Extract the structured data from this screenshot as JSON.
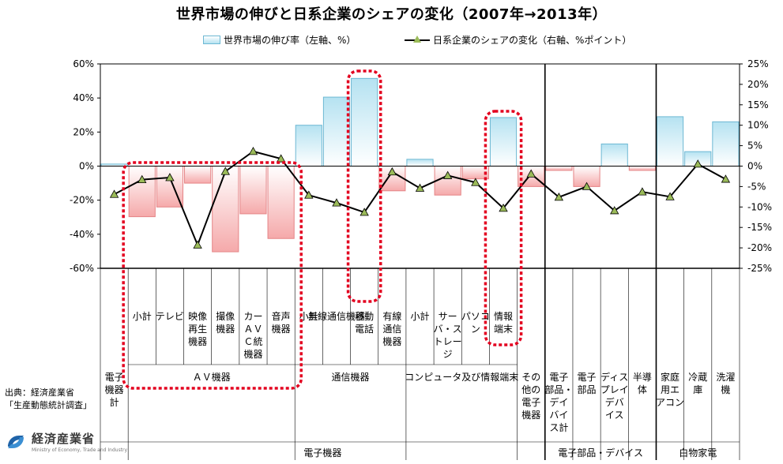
{
  "title": "世界市場の伸びと日系企業のシェアの変化（2007年→2013年）",
  "legend": {
    "bar_label": "世界市場の伸び率（左軸、%）",
    "line_label": "日系企業のシェアの変化（右軸、%ポイント）"
  },
  "source": {
    "line1": "出典：経済産業省",
    "line2": "「生産動態統計調査」"
  },
  "logo": {
    "name": "経済産業省",
    "sub": "Ministry of Economy, Trade and Industry"
  },
  "colors": {
    "positive_bar": "#b5e2f1",
    "negative_bar": "#f5a9aa",
    "line": "#000000",
    "marker": "#9bbb59",
    "highlight": "#e3001f"
  },
  "chart_data": {
    "type": "bar+line",
    "left_axis": {
      "unit": "%",
      "ylim": [
        -60,
        60
      ],
      "ticks": [
        "60%",
        "40%",
        "20%",
        "0%",
        "-20%",
        "-40%",
        "-60%"
      ]
    },
    "right_axis": {
      "unit": "%ポイント",
      "ylim": [
        -25,
        25
      ],
      "ticks": [
        "25%",
        "20%",
        "15%",
        "10%",
        "5%",
        "0%",
        "-5%",
        "-10%",
        "-15%",
        "-20%",
        "-25%"
      ]
    },
    "categories": [
      {
        "label": "電子機器計",
        "lines": [
          "電子",
          "機器",
          "計"
        ],
        "bar": 1.2,
        "share": -6.9
      },
      {
        "label": "AV機器 小計",
        "lines": [
          "小計"
        ],
        "bar": -29.7,
        "share": -3.3
      },
      {
        "label": "テレビ",
        "lines": [
          "テレビ"
        ],
        "bar": -24.0,
        "share": -2.8
      },
      {
        "label": "映像再生機器",
        "lines": [
          "映像",
          "再生",
          "機器"
        ],
        "bar": -10.0,
        "share": -19.3
      },
      {
        "label": "撮像機器",
        "lines": [
          "撮像",
          "機器"
        ],
        "bar": -50.3,
        "share": -1.3
      },
      {
        "label": "カーAVC統計機器",
        "lines": [
          "カー",
          "ＡＶ",
          "Ｃ統",
          "機器"
        ],
        "bar": -28.0,
        "share": 3.6
      },
      {
        "label": "音声機器",
        "lines": [
          "音声",
          "機器"
        ],
        "bar": -42.5,
        "share": 1.8
      },
      {
        "label": "通信機器 小計",
        "lines": [
          "小計"
        ],
        "bar": 24.0,
        "share": -7.1
      },
      {
        "label": "無線通信機器",
        "lines": [
          "無線通信機器"
        ],
        "bar": 40.5,
        "share": -9.0
      },
      {
        "label": "移動電話",
        "lines": [
          "移動",
          "電話"
        ],
        "bar": 51.5,
        "share": -11.3
      },
      {
        "label": "有線通信機器",
        "lines": [
          "有線",
          "通信",
          "機器"
        ],
        "bar": -14.5,
        "share": -1.4
      },
      {
        "label": "コンピュータ及び情報端末 小計",
        "lines": [
          "小計"
        ],
        "bar": 4.0,
        "share": -5.4
      },
      {
        "label": "サーバ・ストレージ",
        "lines": [
          "サー",
          "バ・ス",
          "トレー",
          "ジ"
        ],
        "bar": -17.0,
        "share": -2.3
      },
      {
        "label": "パソコン",
        "lines": [
          "パソコ",
          "ン"
        ],
        "bar": -7.5,
        "share": -4.0
      },
      {
        "label": "情報端末",
        "lines": [
          "情報",
          "端末"
        ],
        "bar": 28.5,
        "share": -10.3
      },
      {
        "label": "その他の電子機器",
        "lines": [
          "その",
          "他の",
          "電子",
          "機器"
        ],
        "bar": -12.0,
        "share": -1.9
      },
      {
        "label": "電子部品・デバイス計",
        "lines": [
          "電子",
          "部品・",
          "デイ",
          "バイ",
          "ス計"
        ],
        "bar": -2.5,
        "share": -7.6
      },
      {
        "label": "電子部品",
        "lines": [
          "電子",
          "部品"
        ],
        "bar": -12.0,
        "share": -5.0
      },
      {
        "label": "ディスプレイデバイス",
        "lines": [
          "ディス",
          "プレイ",
          "デバ",
          "イス"
        ],
        "bar": 13.0,
        "share": -10.9
      },
      {
        "label": "半導体",
        "lines": [
          "半導",
          "体"
        ],
        "bar": -2.5,
        "share": -6.3
      },
      {
        "label": "家庭用エアコン",
        "lines": [
          "家庭",
          "用エ",
          "アコン"
        ],
        "bar": 29.0,
        "share": -7.5
      },
      {
        "label": "冷蔵庫",
        "lines": [
          "冷蔵",
          "庫"
        ],
        "bar": 8.5,
        "share": 0.5
      },
      {
        "label": "洗濯機",
        "lines": [
          "洗濯",
          "機"
        ],
        "bar": 26.0,
        "share": -3.2
      }
    ],
    "group_labels": [
      {
        "text": "ＡＶ機器",
        "from": 1,
        "to": 6
      },
      {
        "text": "通信機器",
        "from": 7,
        "to": 10
      },
      {
        "text": "コンピュータ及び情報端末",
        "from": 11,
        "to": 14
      }
    ],
    "section_labels": [
      {
        "text": "電子機器",
        "from": 0,
        "to": 15
      },
      {
        "text": "電子部品・デバイス",
        "from": 16,
        "to": 19
      },
      {
        "text": "白物家電",
        "from": 20,
        "to": 22
      }
    ],
    "highlighted": [
      "AV機器",
      "移動電話",
      "情報端末"
    ]
  }
}
